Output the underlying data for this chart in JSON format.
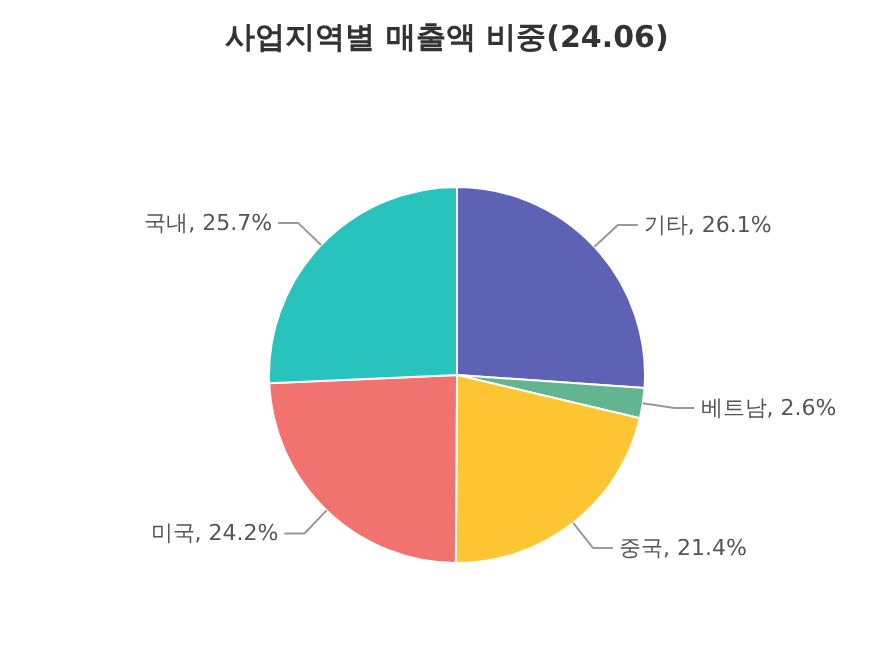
{
  "chart_data": {
    "type": "pie",
    "title": "사업지역별 매출액 비중(24.06)",
    "categories": [
      "기타",
      "베트남",
      "중국",
      "미국",
      "국내"
    ],
    "values": [
      26.1,
      2.6,
      21.4,
      24.2,
      25.7
    ],
    "value_labels": [
      "26.1%",
      "2.6%",
      "21.4%",
      "24.2%",
      "25.7%"
    ],
    "colors": [
      "#5d62b5",
      "#62b58f",
      "#ffc533",
      "#f2726f",
      "#29c3be"
    ]
  }
}
